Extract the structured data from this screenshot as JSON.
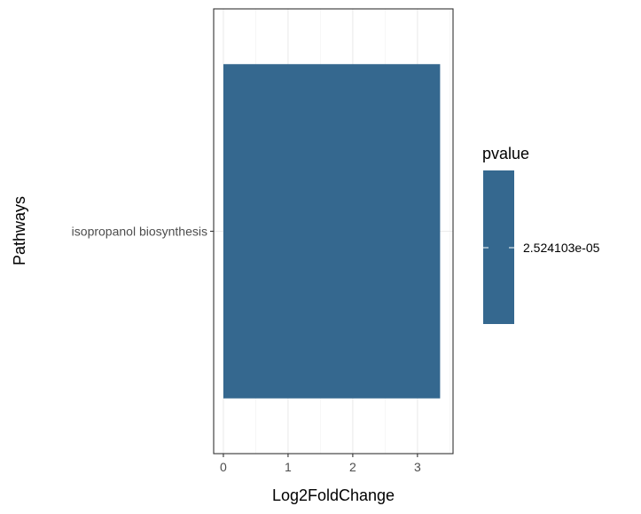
{
  "chart_data": {
    "type": "bar",
    "orientation": "horizontal",
    "categories": [
      "isopropanol biosynthesis"
    ],
    "values": [
      3.35
    ],
    "xlabel": "Log2FoldChange",
    "ylabel": "Pathways",
    "xlim": [
      -0.15,
      3.55
    ],
    "xticks": [
      0,
      1,
      2,
      3
    ],
    "grid": true,
    "bar_color": "#35688F",
    "legend": {
      "title": "pvalue",
      "labels": [
        "2.524103e-05"
      ],
      "placement": "right"
    }
  },
  "colors": {
    "bar": "#35688F",
    "grid_major": "#EBEBEB",
    "grid_minor": "#F5F5F5",
    "panel_border": "#333333"
  }
}
